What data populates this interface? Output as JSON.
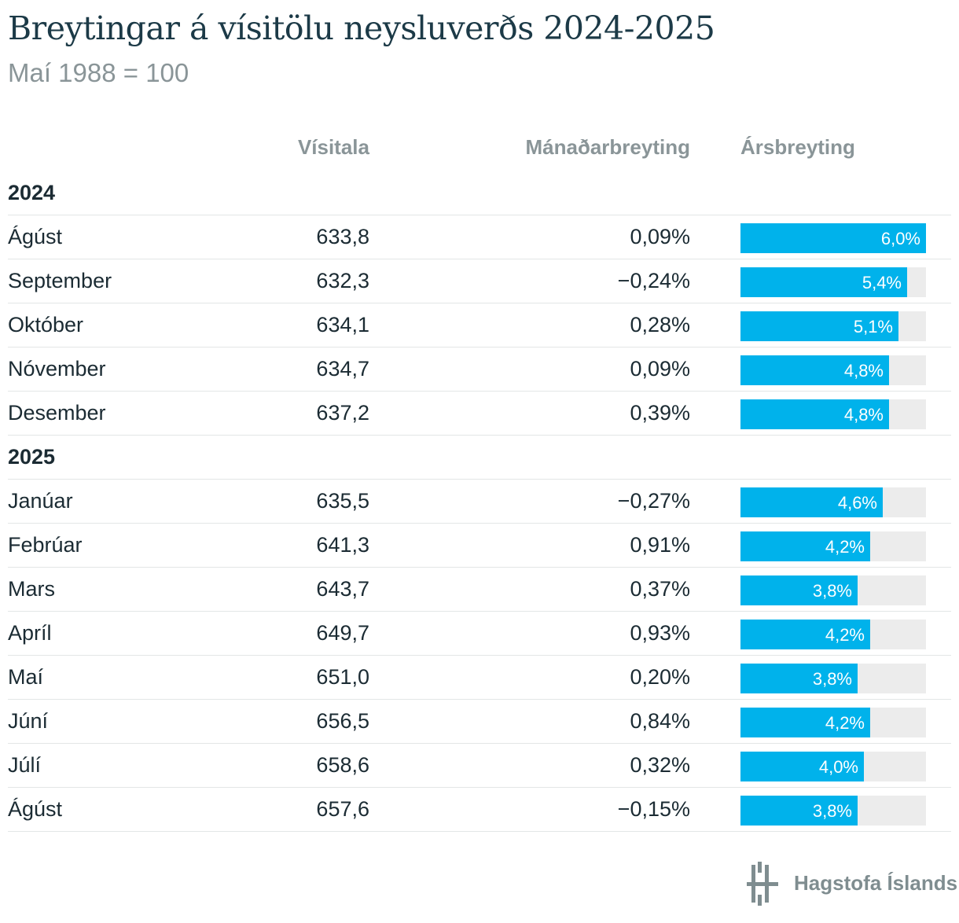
{
  "title": "Breytingar á vísitölu neysluverðs 2024-2025",
  "subtitle": "Maí 1988 = 100",
  "columns": {
    "index": "Vísitala",
    "monthly": "Mánaðarbreyting",
    "yearly": "Ársbreyting"
  },
  "logo_text": "Hagstofa Íslands",
  "colors": {
    "bar": "#00b2eb",
    "track": "#ececec",
    "title": "#1c3a47",
    "header": "#8a9598"
  },
  "chart_data": {
    "type": "table",
    "yearly_max": 6.0,
    "groups": [
      {
        "year": "2024",
        "rows": [
          {
            "month": "Ágúst",
            "index": "633,8",
            "monthly": "0,09%",
            "yearly": 6.0,
            "yearly_label": "6,0%"
          },
          {
            "month": "September",
            "index": "632,3",
            "monthly": "−0,24%",
            "yearly": 5.4,
            "yearly_label": "5,4%"
          },
          {
            "month": "Október",
            "index": "634,1",
            "monthly": "0,28%",
            "yearly": 5.1,
            "yearly_label": "5,1%"
          },
          {
            "month": "Nóvember",
            "index": "634,7",
            "monthly": "0,09%",
            "yearly": 4.8,
            "yearly_label": "4,8%"
          },
          {
            "month": "Desember",
            "index": "637,2",
            "monthly": "0,39%",
            "yearly": 4.8,
            "yearly_label": "4,8%"
          }
        ]
      },
      {
        "year": "2025",
        "rows": [
          {
            "month": "Janúar",
            "index": "635,5",
            "monthly": "−0,27%",
            "yearly": 4.6,
            "yearly_label": "4,6%"
          },
          {
            "month": "Febrúar",
            "index": "641,3",
            "monthly": "0,91%",
            "yearly": 4.2,
            "yearly_label": "4,2%"
          },
          {
            "month": "Mars",
            "index": "643,7",
            "monthly": "0,37%",
            "yearly": 3.8,
            "yearly_label": "3,8%"
          },
          {
            "month": "Apríl",
            "index": "649,7",
            "monthly": "0,93%",
            "yearly": 4.2,
            "yearly_label": "4,2%"
          },
          {
            "month": "Maí",
            "index": "651,0",
            "monthly": "0,20%",
            "yearly": 3.8,
            "yearly_label": "3,8%"
          },
          {
            "month": "Júní",
            "index": "656,5",
            "monthly": "0,84%",
            "yearly": 4.2,
            "yearly_label": "4,2%"
          },
          {
            "month": "Júlí",
            "index": "658,6",
            "monthly": "0,32%",
            "yearly": 4.0,
            "yearly_label": "4,0%"
          },
          {
            "month": "Ágúst",
            "index": "657,6",
            "monthly": "−0,15%",
            "yearly": 3.8,
            "yearly_label": "3,8%"
          }
        ]
      }
    ]
  }
}
